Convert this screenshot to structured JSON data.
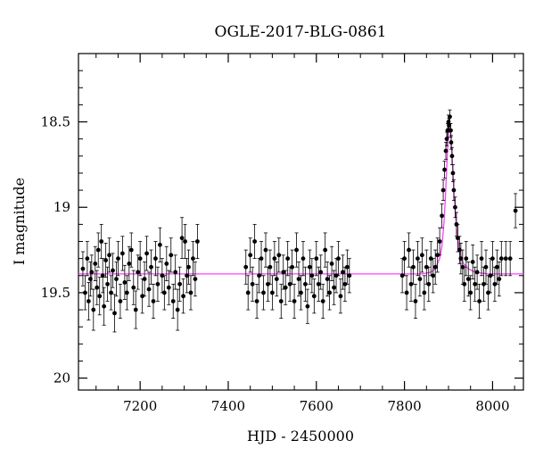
{
  "chart_data": {
    "type": "scatter",
    "title": "OGLE-2017-BLG-0861",
    "xlabel": "HJD - 2450000",
    "ylabel": "I magnitude",
    "xlim": [
      7060,
      8070
    ],
    "ylim": [
      20.07,
      18.1
    ],
    "y_inverted": true,
    "x_ticks": [
      7200,
      7400,
      7600,
      7800,
      8000
    ],
    "y_ticks": [
      18.5,
      19,
      19.5,
      20
    ],
    "y_tick_labels": [
      "18.5",
      "19",
      "19.5",
      "20"
    ],
    "grid": false,
    "series": [
      {
        "kind": "points-with-errorbars",
        "color": "#000000",
        "points": [
          [
            7070,
            19.36,
            0.1
          ],
          [
            7075,
            19.5,
            0.1
          ],
          [
            7080,
            19.3,
            0.1
          ],
          [
            7083,
            19.55,
            0.11
          ],
          [
            7087,
            19.42,
            0.1
          ],
          [
            7090,
            19.38,
            0.1
          ],
          [
            7094,
            19.6,
            0.12
          ],
          [
            7098,
            19.33,
            0.1
          ],
          [
            7102,
            19.47,
            0.1
          ],
          [
            7105,
            19.25,
            0.1
          ],
          [
            7108,
            19.52,
            0.11
          ],
          [
            7112,
            19.2,
            0.1
          ],
          [
            7115,
            19.4,
            0.1
          ],
          [
            7118,
            19.58,
            0.11
          ],
          [
            7122,
            19.31,
            0.1
          ],
          [
            7126,
            19.45,
            0.1
          ],
          [
            7130,
            19.28,
            0.1
          ],
          [
            7134,
            19.5,
            0.1
          ],
          [
            7138,
            19.37,
            0.1
          ],
          [
            7142,
            19.62,
            0.11
          ],
          [
            7146,
            19.42,
            0.1
          ],
          [
            7150,
            19.3,
            0.1
          ],
          [
            7155,
            19.55,
            0.1
          ],
          [
            7160,
            19.27,
            0.1
          ],
          [
            7165,
            19.44,
            0.1
          ],
          [
            7170,
            19.5,
            0.1
          ],
          [
            7175,
            19.33,
            0.1
          ],
          [
            7180,
            19.25,
            0.1
          ],
          [
            7185,
            19.47,
            0.1
          ],
          [
            7190,
            19.6,
            0.11
          ],
          [
            7195,
            19.38,
            0.1
          ],
          [
            7200,
            19.3,
            0.1
          ],
          [
            7205,
            19.52,
            0.1
          ],
          [
            7210,
            19.42,
            0.1
          ],
          [
            7215,
            19.27,
            0.1
          ],
          [
            7220,
            19.48,
            0.1
          ],
          [
            7225,
            19.35,
            0.1
          ],
          [
            7230,
            19.55,
            0.1
          ],
          [
            7235,
            19.3,
            0.1
          ],
          [
            7240,
            19.45,
            0.1
          ],
          [
            7245,
            19.22,
            0.1
          ],
          [
            7250,
            19.4,
            0.1
          ],
          [
            7255,
            19.5,
            0.1
          ],
          [
            7260,
            19.33,
            0.1
          ],
          [
            7265,
            19.47,
            0.1
          ],
          [
            7270,
            19.28,
            0.1
          ],
          [
            7275,
            19.55,
            0.1
          ],
          [
            7280,
            19.38,
            0.1
          ],
          [
            7285,
            19.6,
            0.12
          ],
          [
            7290,
            19.45,
            0.1
          ],
          [
            7295,
            19.18,
            0.12
          ],
          [
            7298,
            19.52,
            0.1
          ],
          [
            7302,
            19.2,
            0.1
          ],
          [
            7306,
            19.4,
            0.1
          ],
          [
            7310,
            19.35,
            0.1
          ],
          [
            7315,
            19.5,
            0.1
          ],
          [
            7320,
            19.3,
            0.1
          ],
          [
            7325,
            19.42,
            0.1
          ],
          [
            7330,
            19.2,
            0.1
          ],
          [
            7440,
            19.35,
            0.1
          ],
          [
            7445,
            19.5,
            0.1
          ],
          [
            7450,
            19.28,
            0.1
          ],
          [
            7455,
            19.45,
            0.1
          ],
          [
            7460,
            19.2,
            0.1
          ],
          [
            7465,
            19.55,
            0.1
          ],
          [
            7470,
            19.4,
            0.1
          ],
          [
            7475,
            19.3,
            0.1
          ],
          [
            7480,
            19.5,
            0.1
          ],
          [
            7485,
            19.25,
            0.1
          ],
          [
            7490,
            19.45,
            0.1
          ],
          [
            7495,
            19.35,
            0.1
          ],
          [
            7500,
            19.5,
            0.1
          ],
          [
            7505,
            19.3,
            0.1
          ],
          [
            7510,
            19.42,
            0.1
          ],
          [
            7515,
            19.28,
            0.1
          ],
          [
            7520,
            19.55,
            0.1
          ],
          [
            7525,
            19.38,
            0.1
          ],
          [
            7530,
            19.47,
            0.1
          ],
          [
            7535,
            19.3,
            0.1
          ],
          [
            7540,
            19.45,
            0.1
          ],
          [
            7545,
            19.35,
            0.1
          ],
          [
            7550,
            19.55,
            0.1
          ],
          [
            7555,
            19.25,
            0.1
          ],
          [
            7560,
            19.42,
            0.1
          ],
          [
            7565,
            19.5,
            0.1
          ],
          [
            7570,
            19.3,
            0.1
          ],
          [
            7575,
            19.45,
            0.1
          ],
          [
            7580,
            19.58,
            0.1
          ],
          [
            7585,
            19.35,
            0.1
          ],
          [
            7590,
            19.4,
            0.1
          ],
          [
            7595,
            19.52,
            0.1
          ],
          [
            7600,
            19.3,
            0.1
          ],
          [
            7605,
            19.45,
            0.1
          ],
          [
            7610,
            19.38,
            0.1
          ],
          [
            7615,
            19.55,
            0.1
          ],
          [
            7620,
            19.25,
            0.1
          ],
          [
            7625,
            19.42,
            0.1
          ],
          [
            7630,
            19.5,
            0.1
          ],
          [
            7635,
            19.33,
            0.1
          ],
          [
            7640,
            19.47,
            0.1
          ],
          [
            7645,
            19.4,
            0.1
          ],
          [
            7650,
            19.3,
            0.1
          ],
          [
            7655,
            19.52,
            0.1
          ],
          [
            7660,
            19.38,
            0.1
          ],
          [
            7665,
            19.45,
            0.1
          ],
          [
            7670,
            19.35,
            0.1
          ],
          [
            7675,
            19.4,
            0.1
          ],
          [
            7795,
            19.4,
            0.1
          ],
          [
            7800,
            19.3,
            0.1
          ],
          [
            7805,
            19.5,
            0.1
          ],
          [
            7810,
            19.25,
            0.1
          ],
          [
            7815,
            19.45,
            0.1
          ],
          [
            7820,
            19.35,
            0.1
          ],
          [
            7825,
            19.55,
            0.1
          ],
          [
            7830,
            19.3,
            0.1
          ],
          [
            7835,
            19.42,
            0.1
          ],
          [
            7840,
            19.28,
            0.1
          ],
          [
            7845,
            19.5,
            0.1
          ],
          [
            7850,
            19.35,
            0.1
          ],
          [
            7855,
            19.45,
            0.1
          ],
          [
            7860,
            19.3,
            0.1
          ],
          [
            7865,
            19.4,
            0.1
          ],
          [
            7870,
            19.35,
            0.1
          ],
          [
            7875,
            19.28,
            0.1
          ],
          [
            7880,
            19.2,
            0.08
          ],
          [
            7885,
            19.05,
            0.07
          ],
          [
            7888,
            18.9,
            0.06
          ],
          [
            7891,
            18.78,
            0.05
          ],
          [
            7894,
            18.67,
            0.05
          ],
          [
            7896,
            18.6,
            0.04
          ],
          [
            7898,
            18.55,
            0.04
          ],
          [
            7900,
            18.5,
            0.04
          ],
          [
            7901,
            18.52,
            0.04
          ],
          [
            7903,
            18.47,
            0.04
          ],
          [
            7905,
            18.55,
            0.04
          ],
          [
            7906,
            18.62,
            0.04
          ],
          [
            7908,
            18.7,
            0.05
          ],
          [
            7910,
            18.8,
            0.05
          ],
          [
            7912,
            18.9,
            0.06
          ],
          [
            7915,
            19.0,
            0.06
          ],
          [
            7918,
            19.1,
            0.07
          ],
          [
            7921,
            19.18,
            0.08
          ],
          [
            7925,
            19.25,
            0.08
          ],
          [
            7928,
            19.3,
            0.09
          ],
          [
            7932,
            19.35,
            0.1
          ],
          [
            7936,
            19.45,
            0.1
          ],
          [
            7940,
            19.3,
            0.1
          ],
          [
            7945,
            19.42,
            0.1
          ],
          [
            7950,
            19.5,
            0.1
          ],
          [
            7955,
            19.32,
            0.1
          ],
          [
            7960,
            19.45,
            0.1
          ],
          [
            7965,
            19.38,
            0.1
          ],
          [
            7970,
            19.55,
            0.1
          ],
          [
            7975,
            19.3,
            0.1
          ],
          [
            7980,
            19.45,
            0.1
          ],
          [
            7985,
            19.35,
            0.1
          ],
          [
            7990,
            19.5,
            0.1
          ],
          [
            7995,
            19.4,
            0.1
          ],
          [
            8000,
            19.3,
            0.1
          ],
          [
            8005,
            19.45,
            0.1
          ],
          [
            8010,
            19.35,
            0.1
          ],
          [
            8015,
            19.42,
            0.1
          ],
          [
            8020,
            19.3,
            0.1
          ],
          [
            8030,
            19.3,
            0.1
          ],
          [
            8040,
            19.3,
            0.1
          ],
          [
            8052,
            19.02,
            0.1
          ]
        ]
      },
      {
        "kind": "model-line",
        "color": "#ff40ff",
        "x": [
          7060,
          7840,
          7860,
          7870,
          7880,
          7885,
          7890,
          7893,
          7896,
          7899,
          7902,
          7904,
          7906,
          7909,
          7912,
          7916,
          7920,
          7926,
          7934,
          7945,
          7960,
          7990,
          8070
        ],
        "y": [
          19.39,
          19.39,
          19.38,
          19.36,
          19.3,
          19.23,
          19.08,
          18.93,
          18.77,
          18.6,
          18.5,
          18.53,
          18.6,
          18.75,
          18.9,
          19.05,
          19.17,
          19.27,
          19.33,
          19.36,
          19.38,
          19.39,
          19.39
        ]
      }
    ]
  }
}
